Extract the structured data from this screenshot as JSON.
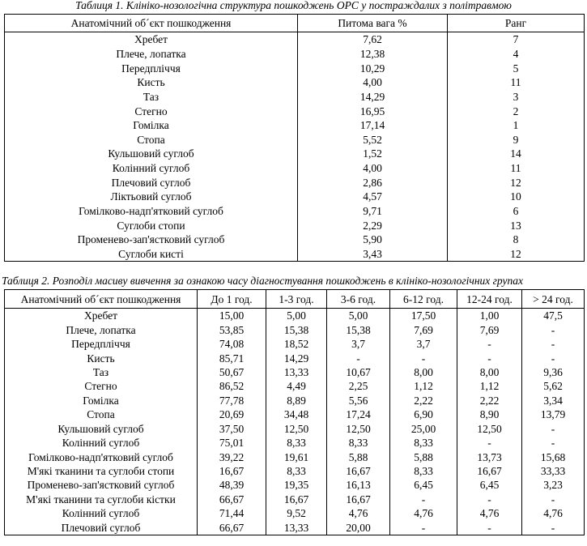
{
  "table1": {
    "caption": "Таблиця 1. Клініко-нозологічна структура пошкоджень ОРС  у постраждалих з політравмою",
    "headers": [
      "Анатомічний об´єкт пошкодження",
      "Питома вага %",
      "Ранг"
    ],
    "rows": [
      [
        "Хребет",
        "7,62",
        "7"
      ],
      [
        "Плече, лопатка",
        "12,38",
        "4"
      ],
      [
        "Передпліччя",
        "10,29",
        "5"
      ],
      [
        "Кисть",
        "4,00",
        "11"
      ],
      [
        "Таз",
        "14,29",
        "3"
      ],
      [
        "Стегно",
        "16,95",
        "2"
      ],
      [
        "Гомілка",
        "17,14",
        "1"
      ],
      [
        "Стопа",
        "5,52",
        "9"
      ],
      [
        "Кульшовий суглоб",
        "1,52",
        "14"
      ],
      [
        "Колінний суглоб",
        "4,00",
        "11"
      ],
      [
        "Плечовий суглоб",
        "2,86",
        "12"
      ],
      [
        "Ліктьовий суглоб",
        "4,57",
        "10"
      ],
      [
        "Гомілково-надп'ятковий суглоб",
        "9,71",
        "6"
      ],
      [
        "Суглоби стопи",
        "2,29",
        "13"
      ],
      [
        "Променево-зап'ястковий суглоб",
        "5,90",
        "8"
      ],
      [
        "Суглоби кисті",
        "3,43",
        "12"
      ]
    ]
  },
  "table2": {
    "caption": "Таблиця 2. Розподіл масиву вивчення за ознакою часу діагностування пошкоджень в клініко-нозологічних групах",
    "headers": [
      "Анатомічний об´єкт пошкодження",
      "До 1 год.",
      "1-3 год.",
      "3-6 год.",
      "6-12 год.",
      "12-24 год.",
      "> 24 год."
    ],
    "rows": [
      [
        "Хребет",
        "15,00",
        "5,00",
        "5,00",
        "17,50",
        "1,00",
        "47,5"
      ],
      [
        "Плече, лопатка",
        "53,85",
        "15,38",
        "15,38",
        "7,69",
        "7,69",
        "-"
      ],
      [
        "Передпліччя",
        "74,08",
        "18,52",
        "3,7",
        "3,7",
        "-",
        "-"
      ],
      [
        "Кисть",
        "85,71",
        "14,29",
        "-",
        "-",
        "-",
        "-"
      ],
      [
        "Таз",
        "50,67",
        "13,33",
        "10,67",
        "8,00",
        "8,00",
        "9,36"
      ],
      [
        "Стегно",
        "86,52",
        "4,49",
        "2,25",
        "1,12",
        "1,12",
        "5,62"
      ],
      [
        "Гомілка",
        "77,78",
        "8,89",
        "5,56",
        "2,22",
        "2,22",
        "3,34"
      ],
      [
        "Стопа",
        "20,69",
        "34,48",
        "17,24",
        "6,90",
        "8,90",
        "13,79"
      ],
      [
        "Кульшовий суглоб",
        "37,50",
        "12,50",
        "12,50",
        "25,00",
        "12,50",
        "-"
      ],
      [
        "Колінний суглоб",
        "75,01",
        "8,33",
        "8,33",
        "8,33",
        "-",
        "-"
      ],
      [
        "Гомілково-надп'ятковий суглоб",
        "39,22",
        "19,61",
        "5,88",
        "5,88",
        "13,73",
        "15,68"
      ],
      [
        "М'які тканини та суглоби стопи",
        "16,67",
        "8,33",
        "16,67",
        "8,33",
        "16,67",
        "33,33"
      ],
      [
        "Променево-зап'ястковий суглоб",
        "48,39",
        "19,35",
        "16,13",
        "6,45",
        "6,45",
        "3,23"
      ],
      [
        "М'які тканини та суглоби кістки",
        "66,67",
        "16,67",
        "16,67",
        "-",
        "-",
        "-"
      ],
      [
        "Колінний суглоб",
        "71,44",
        "9,52",
        "4,76",
        "4,76",
        "4,76",
        "4,76"
      ],
      [
        "Плечовий суглоб",
        "66,67",
        "13,33",
        "20,00",
        "-",
        "-",
        "-"
      ]
    ]
  }
}
